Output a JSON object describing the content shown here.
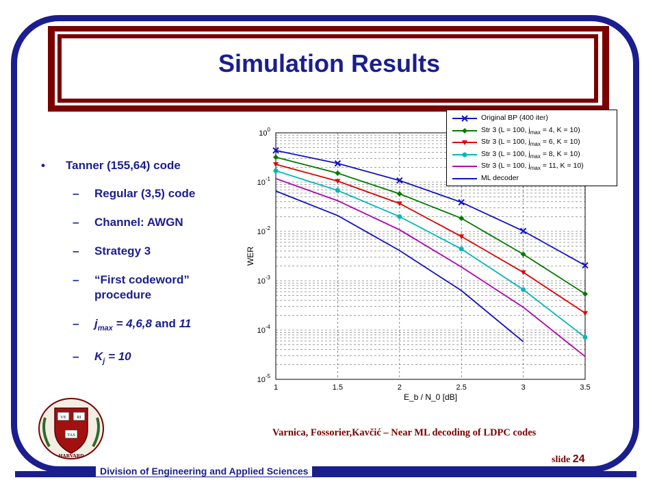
{
  "slide": {
    "title": "Simulation Results",
    "bullet_main": "Tanner (155,64) code",
    "sub_items": [
      "Regular (3,5) code",
      "Channel: AWGN",
      "Strategy 3",
      "“First codeword” procedure"
    ],
    "jmax_prefix": "j",
    "jmax_sub": "max",
    "jmax_rest": " = 4,6,8",
    "jmax_and": " and ",
    "jmax_last": "11",
    "kj_prefix": "K",
    "kj_sub": "j",
    "kj_rest": " = 10",
    "citation": "Varnica, Fossorier,Kavčić – Near ML decoding of LDPC codes",
    "slide_label": "slide",
    "slide_number": "24",
    "footer": "Division of Engineering and Applied Sciences",
    "seal_words": [
      "VE",
      "RI",
      "TAS",
      "HARVARD"
    ]
  },
  "colors": {
    "accent": "#1a1e8e",
    "maroon": "#7a0000"
  },
  "chart_data": {
    "type": "line",
    "xlabel": "E_b / N_0 [dB]",
    "ylabel": "WER",
    "xlim": [
      1,
      3.5
    ],
    "ylim": [
      1e-05,
      1
    ],
    "yscale": "log",
    "xticks": [
      "1",
      "1.5",
      "2",
      "2.5",
      "3",
      "3.5"
    ],
    "yticks": [
      {
        "base": "10",
        "exp": "0"
      },
      {
        "base": "10",
        "exp": "-1"
      },
      {
        "base": "10",
        "exp": "-2"
      },
      {
        "base": "10",
        "exp": "-3"
      },
      {
        "base": "10",
        "exp": "-4"
      },
      {
        "base": "10",
        "exp": "-5"
      }
    ],
    "grid": true,
    "legend_position": "top-right",
    "series": [
      {
        "name": "Original BP (400 iter)",
        "color": "#1010c8",
        "marker": "x",
        "x": [
          1,
          1.5,
          2,
          2.5,
          3,
          3.5
        ],
        "y": [
          0.44,
          0.24,
          0.108,
          0.039,
          0.0102,
          0.00205
        ]
      },
      {
        "name": "Str 3 (L = 100, j_max = 4, K = 10)",
        "color": "#007a00",
        "marker": "diamond",
        "x": [
          1,
          1.5,
          2,
          2.5,
          3,
          3.5
        ],
        "y": [
          0.32,
          0.152,
          0.058,
          0.0185,
          0.00345,
          0.00054
        ]
      },
      {
        "name": "Str 3 (L = 100, j_max = 6, K = 10)",
        "color": "#e00000",
        "marker": "triangle-down",
        "x": [
          1,
          1.5,
          2,
          2.5,
          3,
          3.5
        ],
        "y": [
          0.23,
          0.105,
          0.037,
          0.0079,
          0.00148,
          0.00022
        ]
      },
      {
        "name": "Str 3 (L = 100, j_max = 8, K = 10)",
        "color": "#00b8b8",
        "marker": "circle",
        "x": [
          1,
          1.5,
          2,
          2.5,
          3,
          3.5
        ],
        "y": [
          0.17,
          0.068,
          0.02,
          0.0044,
          0.00066,
          7.1e-05
        ]
      },
      {
        "name": "Str 3 (L = 100, j_max = 11, K = 10)",
        "color": "#b000b0",
        "marker": "none",
        "x": [
          1,
          1.5,
          2,
          2.5,
          3,
          3.5
        ],
        "y": [
          0.118,
          0.042,
          0.0108,
          0.0019,
          0.00029,
          2.9e-05
        ]
      },
      {
        "name": "ML decoder",
        "color": "#1010c8",
        "marker": "none",
        "x": [
          1,
          1.5,
          2,
          2.5,
          3
        ],
        "y": [
          0.066,
          0.021,
          0.0041,
          0.00063,
          5.8e-05
        ]
      }
    ]
  }
}
